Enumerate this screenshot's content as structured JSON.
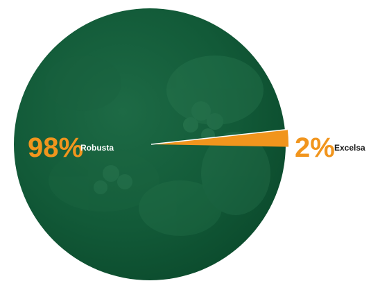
{
  "chart_data": {
    "type": "pie",
    "slices": [
      {
        "label": "Robusta",
        "value": 98,
        "value_label": "98%",
        "color": "#0f5434"
      },
      {
        "label": "Excelsa",
        "value": 2,
        "value_label": "2%",
        "color": "#f1951d"
      }
    ],
    "pct_color": "#f1951d",
    "name_color_inside": "#ffffff",
    "name_color_outside": "#1a1a1a"
  }
}
